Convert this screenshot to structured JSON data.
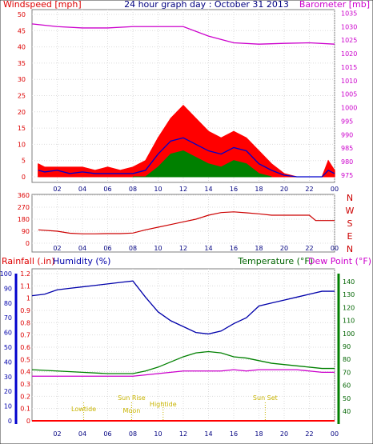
{
  "chart_data": [
    {
      "type": "line",
      "title": "24 hour graph day : October 31 2013",
      "ylabel_left": "Windspeed [mph]",
      "ylabel_right": "Barometer [mb]",
      "x_ticks": [
        "02",
        "04",
        "06",
        "08",
        "10",
        "12",
        "14",
        "16",
        "18",
        "20",
        "22",
        "00"
      ],
      "y_left_ticks": [
        0,
        5,
        10,
        15,
        20,
        25,
        30,
        35,
        40,
        45,
        50
      ],
      "y_right_ticks": [
        975,
        980,
        985,
        990,
        995,
        1000,
        1005,
        1010,
        1015,
        1020,
        1025,
        1030,
        1035
      ],
      "x_range_hours": [
        0,
        24
      ],
      "y_left_range": [
        0,
        50
      ],
      "y_right_range": [
        972.3,
        1036.3
      ],
      "series": [
        {
          "color": "#ff0000",
          "style": "bars",
          "x": [
            0.5,
            1,
            2,
            3,
            4,
            5,
            6,
            7,
            8,
            9,
            10,
            11,
            12,
            13,
            14,
            15,
            16,
            17,
            18,
            19,
            20,
            21,
            22,
            23,
            23.5,
            24
          ],
          "values": [
            4,
            3,
            3,
            3,
            3,
            2,
            3,
            2,
            3,
            5,
            12,
            18,
            22,
            18,
            14,
            12,
            14,
            12,
            8,
            4,
            1,
            0,
            0,
            0,
            5,
            2
          ]
        },
        {
          "color": "#0000cc",
          "x": [
            0.5,
            1,
            2,
            3,
            4,
            5,
            6,
            7,
            8,
            9,
            10,
            11,
            12,
            13,
            14,
            15,
            16,
            17,
            18,
            19,
            20,
            21,
            22,
            23,
            23.5,
            24
          ],
          "values": [
            2,
            1.5,
            2,
            1,
            1.5,
            1,
            1,
            1,
            1,
            2,
            7,
            11,
            12,
            10,
            8,
            7,
            9,
            8,
            4,
            2,
            0.5,
            0,
            0,
            0,
            2,
            1
          ]
        },
        {
          "color": "#008000",
          "style": "bars",
          "x": [
            8,
            9,
            10,
            11,
            12,
            13,
            14,
            15,
            16,
            17,
            18,
            19
          ],
          "values": [
            0,
            0,
            3,
            7,
            8,
            6,
            4,
            3,
            5,
            4,
            1,
            0
          ]
        },
        {
          "color": "#cc00cc",
          "axis": "right",
          "x": [
            0,
            2,
            4,
            6,
            8,
            10,
            12,
            14,
            16,
            18,
            20,
            22,
            24
          ],
          "values": [
            1031,
            1030,
            1029.5,
            1029.5,
            1030,
            1030,
            1030,
            1026.5,
            1024,
            1023.5,
            1023.8,
            1024,
            1023.5
          ]
        }
      ]
    },
    {
      "type": "line",
      "y_ticks": [
        0,
        90,
        180,
        270,
        360
      ],
      "compass_labels": [
        "N",
        "W",
        "S",
        "E",
        "N"
      ],
      "x_ticks": [
        "02",
        "04",
        "06",
        "08",
        "10",
        "12",
        "14",
        "16",
        "18",
        "20",
        "22",
        "00"
      ],
      "y_range": [
        0,
        360
      ],
      "series": [
        {
          "color": "#cc0000",
          "x": [
            0.5,
            2,
            3,
            4,
            5,
            6,
            7,
            8,
            9,
            10,
            11,
            12,
            13,
            14,
            15,
            16,
            17,
            18,
            19,
            20,
            21,
            22,
            22.5,
            23,
            24
          ],
          "values": [
            100,
            90,
            75,
            70,
            70,
            72,
            72,
            76,
            100,
            120,
            140,
            160,
            180,
            210,
            230,
            235,
            228,
            220,
            210,
            210,
            210,
            210,
            170,
            170,
            170
          ]
        }
      ]
    },
    {
      "type": "line",
      "ylabel_left": "Rainfall (.in)",
      "ylabel_left2": "Humidity (%)",
      "ylabel_right": "Temperature (°F)",
      "ylabel_right2": "Dew Point (°F)",
      "y_left_ticks": [
        "0",
        "0.1",
        "0.2",
        "0.3",
        "0.4",
        "0.5",
        "0.6",
        "0.7",
        "0.8",
        "0.9",
        "1",
        "1.1",
        "1.2"
      ],
      "y_left2_ticks": [
        0,
        10,
        20,
        30,
        40,
        50,
        60,
        70,
        80,
        90,
        100
      ],
      "y_right_ticks": [
        40,
        50,
        60,
        70,
        80,
        90,
        100,
        110,
        120,
        130,
        140
      ],
      "x_ticks": [
        "02",
        "04",
        "06",
        "08",
        "10",
        "12",
        "14",
        "16",
        "18",
        "20",
        "22",
        "00"
      ],
      "annotations": [
        {
          "label": "Lowtide",
          "x": 4.1
        },
        {
          "label": "Sun Rise",
          "x": 7.9
        },
        {
          "label": "Moon",
          "x": 7.9
        },
        {
          "label": "Hightide",
          "x": 10.4
        },
        {
          "label": "Sun Set",
          "x": 18.5
        }
      ],
      "series": [
        {
          "color": "#0000aa",
          "axis": "left2",
          "x": [
            0,
            1,
            2,
            3,
            4,
            5,
            6,
            7,
            8,
            9,
            10,
            11,
            12,
            13,
            14,
            15,
            16,
            17,
            18,
            19,
            20,
            21,
            22,
            23,
            24
          ],
          "values": [
            85,
            86,
            89,
            90,
            91,
            92,
            93,
            94,
            95,
            84,
            74,
            68,
            64,
            60,
            59,
            61,
            66,
            70,
            78,
            80,
            82,
            84,
            86,
            88,
            88
          ]
        },
        {
          "color": "#008000",
          "axis": "right",
          "x": [
            0,
            2,
            4,
            6,
            8,
            9,
            10,
            11,
            12,
            13,
            14,
            15,
            16,
            17,
            18,
            19,
            20,
            21,
            22,
            23,
            24
          ],
          "values": [
            72,
            71,
            70,
            69,
            69,
            71,
            74,
            78,
            82,
            85,
            86,
            85,
            82,
            81,
            79,
            77,
            76,
            75,
            74,
            73,
            73
          ]
        },
        {
          "color": "#cc00cc",
          "axis": "right",
          "x": [
            0,
            2,
            4,
            6,
            8,
            9,
            10,
            11,
            12,
            13,
            14,
            15,
            16,
            17,
            18,
            19,
            20,
            21,
            22,
            23,
            24
          ],
          "values": [
            67,
            67,
            67,
            67,
            67,
            68,
            69,
            70,
            71,
            71,
            71,
            71,
            72,
            71,
            72,
            72,
            72,
            72,
            71,
            70,
            70
          ]
        },
        {
          "color": "#ff0000",
          "axis": "left",
          "x": [
            0,
            24
          ],
          "values": [
            0,
            0
          ]
        }
      ]
    }
  ]
}
